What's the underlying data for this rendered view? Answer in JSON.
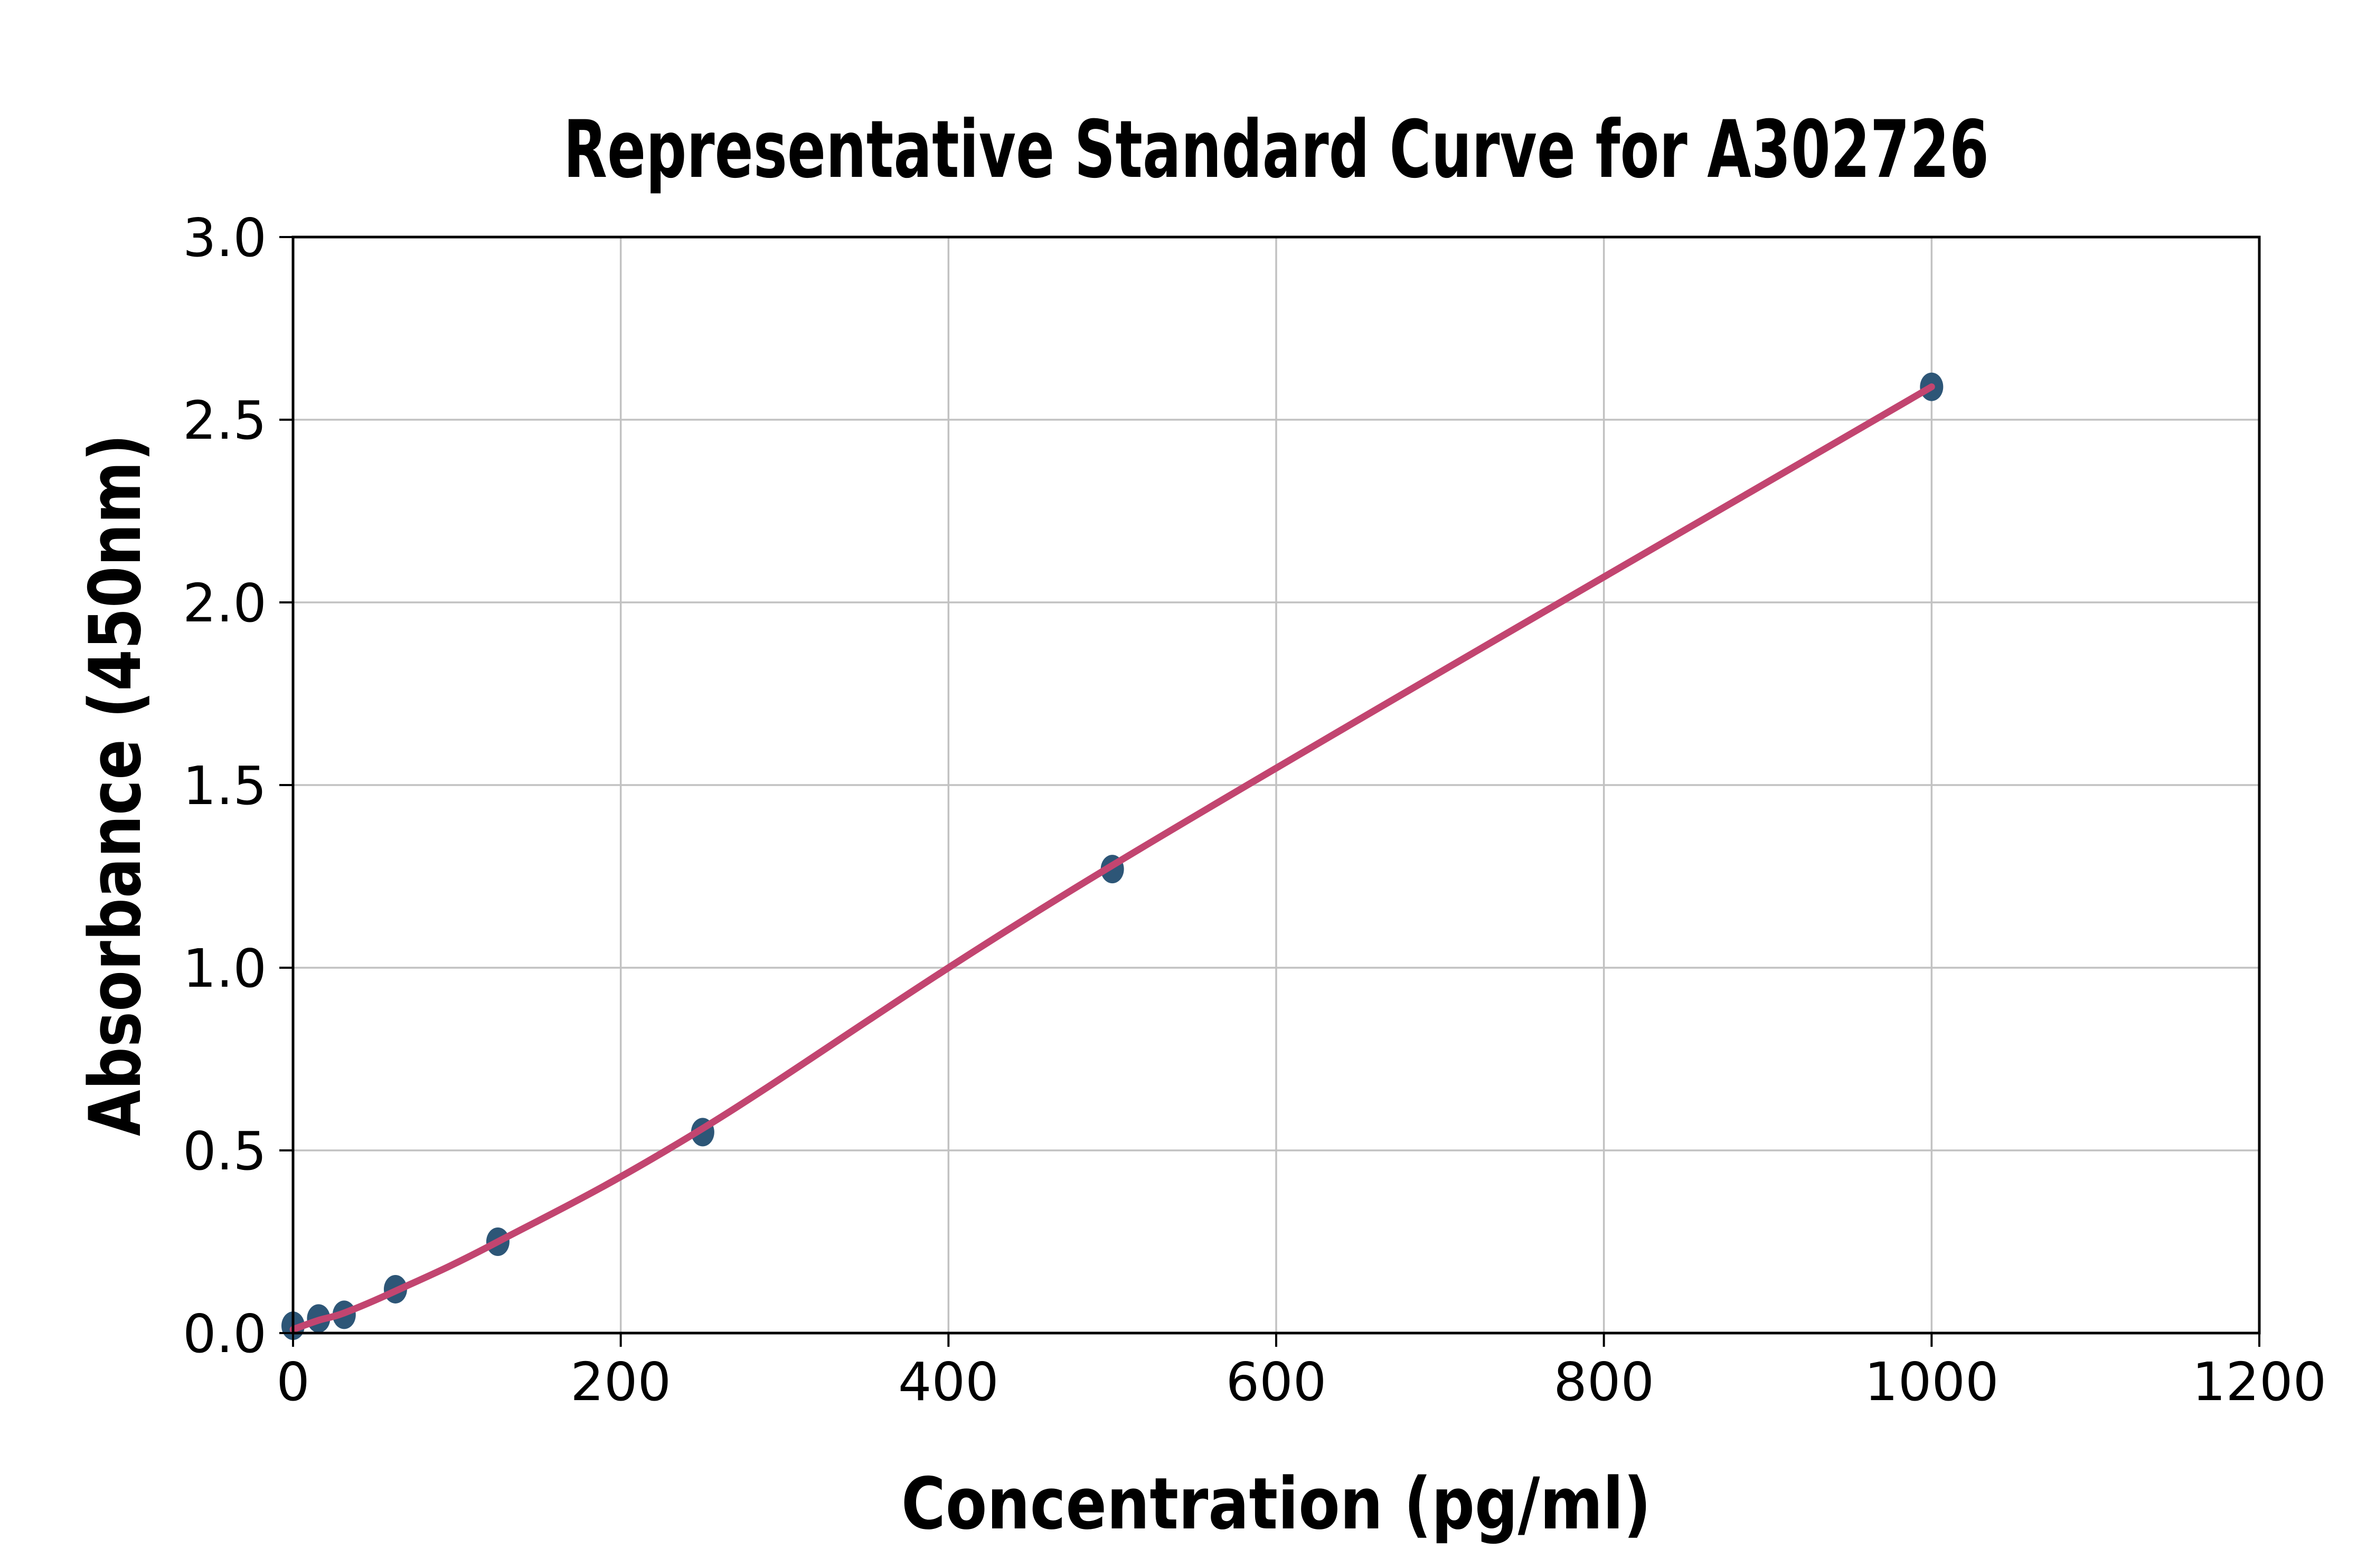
{
  "chart_data": {
    "type": "scatter",
    "title": "Representative Standard Curve for A302726",
    "xlabel": "Concentration (pg/ml)",
    "ylabel": "Absorbance (450nm)",
    "xlim": [
      0,
      1200
    ],
    "ylim": [
      0.0,
      3.0
    ],
    "grid": true,
    "legend": "none",
    "x_ticks": [
      0,
      200,
      400,
      600,
      800,
      1000,
      1200
    ],
    "x_tick_labels": [
      "0",
      "200",
      "400",
      "600",
      "800",
      "1000",
      "1200"
    ],
    "y_ticks": [
      0.0,
      0.5,
      1.0,
      1.5,
      2.0,
      2.5,
      3.0
    ],
    "y_tick_labels": [
      "0.0",
      "0.5",
      "1.0",
      "1.5",
      "2.0",
      "2.5",
      "3.0"
    ],
    "x_gridlines": [
      200,
      400,
      600,
      800,
      1000
    ],
    "y_gridlines": [
      0.5,
      1.0,
      1.5,
      2.0,
      2.5
    ],
    "series": [
      {
        "name": "standards",
        "kind": "scatter",
        "x": [
          0,
          15.6,
          31.2,
          62.5,
          125,
          250,
          500,
          1000
        ],
        "y": [
          0.02,
          0.04,
          0.05,
          0.12,
          0.25,
          0.55,
          1.27,
          2.59
        ]
      },
      {
        "name": "fitted-curve",
        "kind": "line",
        "x": [
          0,
          15.6,
          31.2,
          62.5,
          125,
          250,
          500,
          1000
        ],
        "y": [
          0.01,
          0.035,
          0.055,
          0.115,
          0.25,
          0.56,
          1.28,
          2.59
        ]
      }
    ],
    "colors": {
      "curve": "#c24570",
      "marker": "#2d5677",
      "gridline": "#c2c2c2",
      "spine": "#000000",
      "text": "#000000",
      "background": "#ffffff"
    }
  }
}
